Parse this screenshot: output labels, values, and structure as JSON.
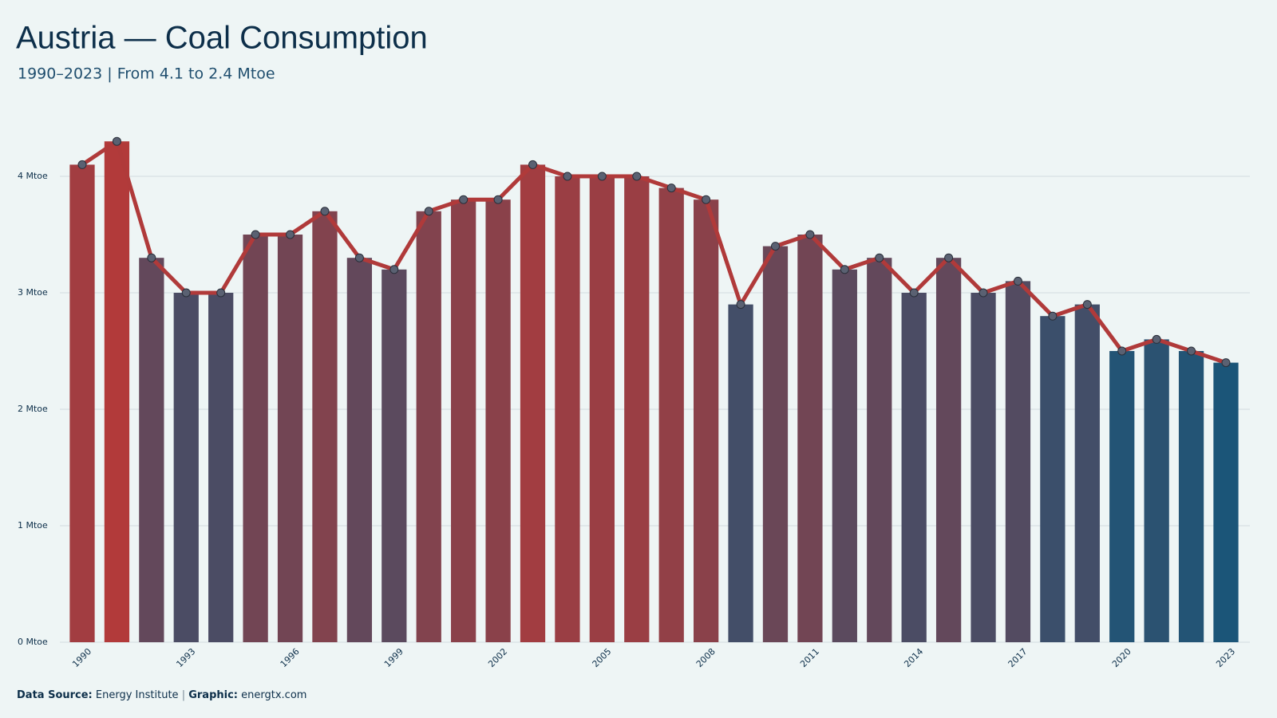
{
  "chart_data": {
    "type": "bar",
    "title": "Austria — Coal Consumption",
    "subtitle": "1990–2023 | From 4.1 to 2.4 Mtoe",
    "categories": [
      "1990",
      null,
      null,
      "1993",
      null,
      null,
      "1996",
      null,
      null,
      "1999",
      null,
      null,
      "2002",
      null,
      null,
      "2005",
      null,
      null,
      "2008",
      null,
      null,
      "2011",
      null,
      null,
      "2014",
      null,
      null,
      "2017",
      null,
      null,
      "2020",
      null,
      null,
      "2023"
    ],
    "values": [
      4.1,
      4.3,
      3.3,
      3.0,
      3.0,
      3.5,
      3.5,
      3.7,
      3.3,
      3.2,
      3.7,
      3.8,
      3.8,
      4.1,
      4.0,
      4.0,
      4.0,
      3.9,
      3.8,
      2.9,
      3.4,
      3.5,
      3.2,
      3.3,
      3.0,
      3.3,
      3.0,
      3.1,
      2.8,
      2.9,
      2.5,
      2.6,
      2.5,
      2.4
    ],
    "color_scale": [
      "#1b5578",
      "#b23a3a"
    ],
    "line_color": "#b03a3a",
    "marker_color": "#5a6172",
    "ylim": [
      0,
      4.5
    ],
    "yticks": [
      {
        "value": 0,
        "label": "0 Mtoe"
      },
      {
        "value": 1,
        "label": "1 Mtoe"
      },
      {
        "value": 2,
        "label": "2 Mtoe"
      },
      {
        "value": 3,
        "label": "3 Mtoe"
      },
      {
        "value": 4,
        "label": "4 Mtoe"
      }
    ],
    "grid": true,
    "source_label": "Data Source:",
    "source": "Energy Institute",
    "credit_label": "Graphic:",
    "credit": "energtx.com"
  }
}
